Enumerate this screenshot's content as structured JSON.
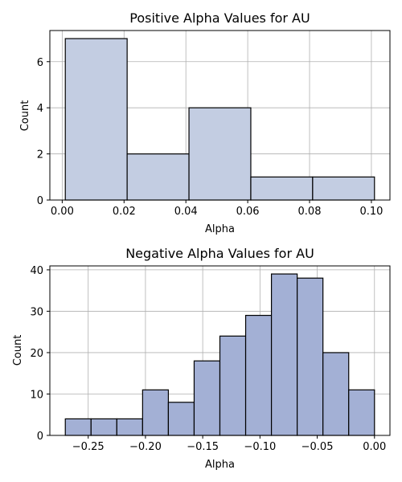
{
  "chart_data": [
    {
      "type": "bar",
      "title": "Positive Alpha Values for AU",
      "xlabel": "Alpha",
      "ylabel": "Count",
      "bin_edges": [
        0.001,
        0.021,
        0.041,
        0.061,
        0.081,
        0.101
      ],
      "values": [
        7,
        2,
        4,
        1,
        1
      ],
      "xlim": [
        -0.004,
        0.106
      ],
      "ylim": [
        0,
        7.35
      ],
      "x_ticks": [
        0.0,
        0.02,
        0.04,
        0.06,
        0.08,
        0.1
      ],
      "x_tick_labels": [
        "0.00",
        "0.02",
        "0.04",
        "0.06",
        "0.08",
        "0.10"
      ],
      "y_ticks": [
        0,
        2,
        4,
        6
      ],
      "y_tick_labels": [
        "0",
        "2",
        "4",
        "6"
      ],
      "grid": true,
      "bar_color": "#c3cde2",
      "edge_color": "#000000"
    },
    {
      "type": "bar",
      "title": "Negative Alpha Values for AU",
      "xlabel": "Alpha",
      "ylabel": "Count",
      "bin_edges": [
        -0.27,
        -0.2475,
        -0.225,
        -0.2025,
        -0.18,
        -0.1575,
        -0.135,
        -0.1125,
        -0.09,
        -0.0675,
        -0.045,
        -0.0225,
        0.0
      ],
      "values": [
        4,
        4,
        4,
        11,
        8,
        18,
        24,
        29,
        39,
        38,
        20,
        11
      ],
      "xlim": [
        -0.2835,
        0.0135
      ],
      "ylim": [
        0,
        40.95
      ],
      "x_ticks": [
        -0.25,
        -0.2,
        -0.15,
        -0.1,
        -0.05,
        0.0
      ],
      "x_tick_labels": [
        "−0.25",
        "−0.20",
        "−0.15",
        "−0.10",
        "−0.05",
        "0.00"
      ],
      "y_ticks": [
        0,
        10,
        20,
        30,
        40
      ],
      "y_tick_labels": [
        "0",
        "10",
        "20",
        "30",
        "40"
      ],
      "grid": true,
      "bar_color": "#a3b0d5",
      "edge_color": "#000000"
    }
  ]
}
